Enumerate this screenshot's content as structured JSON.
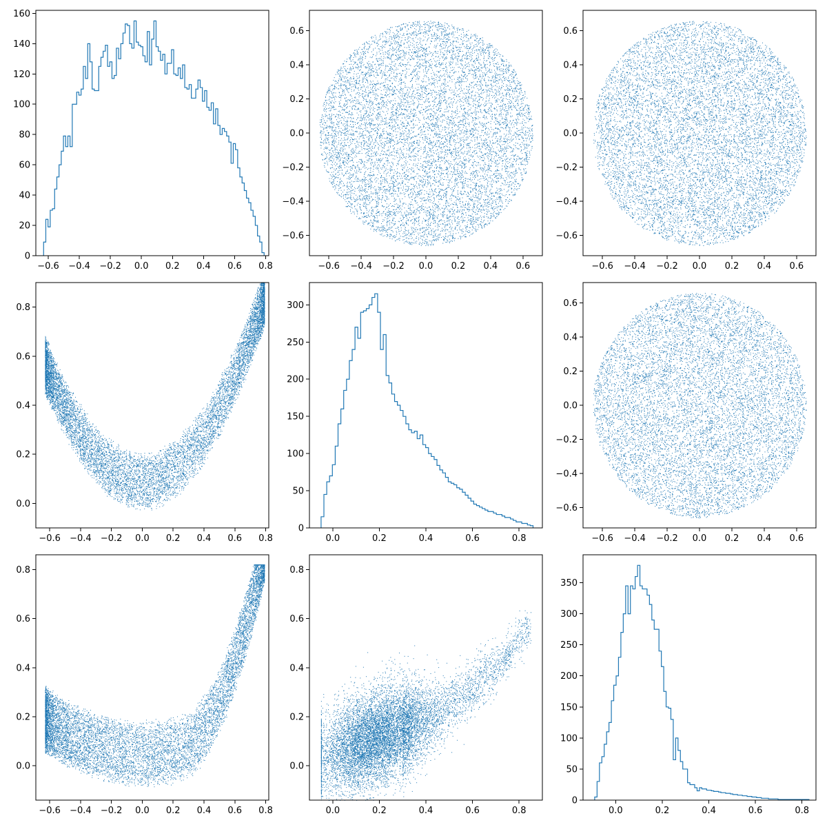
{
  "colors": {
    "series": "#1f77b4",
    "axes": "#000000",
    "background": "#ffffff"
  },
  "chart_data": [
    {
      "panel": "row1-col1",
      "type": "histogram",
      "xlim": [
        -0.68,
        0.82
      ],
      "ylim": [
        0,
        162
      ],
      "xticks": [
        -0.6,
        -0.4,
        -0.2,
        0.0,
        0.2,
        0.4,
        0.6,
        0.8
      ],
      "xtick_labels": [
        "−0.6",
        "−0.4",
        "−0.2",
        "0.0",
        "0.2",
        "0.4",
        "0.6",
        "0.8"
      ],
      "yticks": [
        0,
        20,
        40,
        60,
        80,
        100,
        120,
        140,
        160
      ],
      "ytick_labels": [
        "0",
        "20",
        "40",
        "60",
        "80",
        "100",
        "120",
        "140",
        "160"
      ],
      "bin_range": [
        -0.63,
        0.79
      ],
      "counts": [
        9,
        24,
        19,
        30,
        31,
        44,
        52,
        60,
        69,
        79,
        72,
        79,
        72,
        100,
        100,
        108,
        106,
        110,
        125,
        117,
        140,
        128,
        110,
        109,
        109,
        125,
        131,
        135,
        139,
        125,
        128,
        117,
        119,
        137,
        130,
        140,
        147,
        153,
        152,
        140,
        137,
        155,
        141,
        139,
        138,
        132,
        128,
        148,
        126,
        143,
        155,
        138,
        135,
        129,
        133,
        120,
        127,
        127,
        136,
        120,
        119,
        124,
        117,
        126,
        111,
        110,
        113,
        104,
        104,
        110,
        116,
        111,
        102,
        109,
        98,
        96,
        101,
        87,
        97,
        86,
        80,
        84,
        82,
        79,
        75,
        61,
        74,
        70,
        58,
        52,
        48,
        43,
        38,
        35,
        30,
        26,
        20,
        13,
        9,
        2
      ]
    },
    {
      "panel": "row1-col2",
      "type": "scatter",
      "shape": "disc",
      "center": [
        0.0,
        0.0
      ],
      "radius": 0.66,
      "n_points": 10000,
      "xlim": [
        -0.72,
        0.72
      ],
      "ylim": [
        -0.72,
        0.72
      ],
      "xticks": [
        -0.6,
        -0.4,
        -0.2,
        0.0,
        0.2,
        0.4,
        0.6
      ],
      "xtick_labels": [
        "−0.6",
        "−0.4",
        "−0.2",
        "0.0",
        "0.2",
        "0.4",
        "0.6"
      ],
      "yticks": [
        -0.6,
        -0.4,
        -0.2,
        0.0,
        0.2,
        0.4,
        0.6
      ],
      "ytick_labels": [
        "−0.6",
        "−0.4",
        "−0.2",
        "0.0",
        "0.2",
        "0.4",
        "0.6"
      ]
    },
    {
      "panel": "row1-col3",
      "type": "scatter",
      "shape": "disc",
      "center": [
        0.0,
        0.0
      ],
      "radius": 0.66,
      "n_points": 10000,
      "xlim": [
        -0.72,
        0.72
      ],
      "ylim": [
        -0.72,
        0.72
      ],
      "xticks": [
        -0.6,
        -0.4,
        -0.2,
        0.0,
        0.2,
        0.4,
        0.6
      ],
      "xtick_labels": [
        "−0.6",
        "−0.4",
        "−0.2",
        "0.0",
        "0.2",
        "0.4",
        "0.6"
      ],
      "yticks": [
        -0.6,
        -0.4,
        -0.2,
        0.0,
        0.2,
        0.4,
        0.6
      ],
      "ytick_labels": [
        "−0.6",
        "−0.4",
        "−0.2",
        "0.0",
        "0.2",
        "0.4",
        "0.6"
      ]
    },
    {
      "panel": "row2-col1",
      "type": "scatter",
      "shape": "parabolic-band",
      "x_range": [
        -0.63,
        0.79
      ],
      "curve": "y = 1.2*x^2 + 0.09 +/- 0.13",
      "n_points": 10000,
      "xlim": [
        -0.69,
        0.82
      ],
      "ylim": [
        -0.1,
        0.9
      ],
      "xticks": [
        -0.6,
        -0.4,
        -0.2,
        0.0,
        0.2,
        0.4,
        0.6,
        0.8
      ],
      "xtick_labels": [
        "−0.6",
        "−0.4",
        "−0.2",
        "0.0",
        "0.2",
        "0.4",
        "0.6",
        "0.8"
      ],
      "yticks": [
        0.0,
        0.2,
        0.4,
        0.6,
        0.8
      ],
      "ytick_labels": [
        "0.0",
        "0.2",
        "0.4",
        "0.6",
        "0.8"
      ]
    },
    {
      "panel": "row2-col2",
      "type": "histogram",
      "xlim": [
        -0.1,
        0.9
      ],
      "ylim": [
        0,
        330
      ],
      "xticks": [
        0.0,
        0.2,
        0.4,
        0.6,
        0.8
      ],
      "xtick_labels": [
        "0.0",
        "0.2",
        "0.4",
        "0.6",
        "0.8"
      ],
      "yticks": [
        0,
        50,
        100,
        150,
        200,
        250,
        300
      ],
      "ytick_labels": [
        "0",
        "50",
        "100",
        "150",
        "200",
        "250",
        "300"
      ],
      "bin_range": [
        -0.05,
        0.86
      ],
      "counts": [
        15,
        45,
        62,
        70,
        85,
        110,
        140,
        160,
        185,
        200,
        225,
        240,
        270,
        255,
        290,
        292,
        295,
        300,
        310,
        315,
        290,
        240,
        260,
        205,
        195,
        180,
        170,
        165,
        158,
        150,
        140,
        132,
        128,
        130,
        120,
        125,
        112,
        108,
        100,
        96,
        92,
        84,
        78,
        74,
        68,
        62,
        60,
        58,
        54,
        52,
        48,
        44,
        40,
        36,
        32,
        30,
        28,
        26,
        24,
        22,
        22,
        20,
        18,
        18,
        16,
        14,
        14,
        12,
        10,
        8,
        8,
        6,
        6,
        4,
        3
      ]
    },
    {
      "panel": "row2-col3",
      "type": "scatter",
      "shape": "disc",
      "center": [
        0.0,
        0.0
      ],
      "radius": 0.66,
      "n_points": 10000,
      "xlim": [
        -0.72,
        0.72
      ],
      "ylim": [
        -0.72,
        0.72
      ],
      "xticks": [
        -0.6,
        -0.4,
        -0.2,
        0.0,
        0.2,
        0.4,
        0.6
      ],
      "xtick_labels": [
        "−0.6",
        "−0.4",
        "−0.2",
        "0.0",
        "0.2",
        "0.4",
        "0.6"
      ],
      "yticks": [
        -0.6,
        -0.4,
        -0.2,
        0.0,
        0.2,
        0.4,
        0.6
      ],
      "ytick_labels": [
        "−0.6",
        "−0.4",
        "−0.2",
        "0.0",
        "0.2",
        "0.4",
        "0.6"
      ]
    },
    {
      "panel": "row3-col1",
      "type": "scatter",
      "shape": "u-band",
      "x_range": [
        -0.63,
        0.79
      ],
      "n_points": 10000,
      "xlim": [
        -0.69,
        0.82
      ],
      "ylim": [
        -0.14,
        0.86
      ],
      "xticks": [
        -0.6,
        -0.4,
        -0.2,
        0.0,
        0.2,
        0.4,
        0.6,
        0.8
      ],
      "xtick_labels": [
        "−0.6",
        "−0.4",
        "−0.2",
        "0.0",
        "0.2",
        "0.4",
        "0.6",
        "0.8"
      ],
      "yticks": [
        0.0,
        0.2,
        0.4,
        0.6,
        0.8
      ],
      "ytick_labels": [
        "0.0",
        "0.2",
        "0.4",
        "0.6",
        "0.8"
      ]
    },
    {
      "panel": "row3-col2",
      "type": "scatter",
      "shape": "comet",
      "x_range": [
        -0.05,
        0.86
      ],
      "n_points": 10000,
      "xlim": [
        -0.1,
        0.9
      ],
      "ylim": [
        -0.14,
        0.86
      ],
      "xticks": [
        0.0,
        0.2,
        0.4,
        0.6,
        0.8
      ],
      "xtick_labels": [
        "0.0",
        "0.2",
        "0.4",
        "0.6",
        "0.8"
      ],
      "yticks": [
        0.0,
        0.2,
        0.4,
        0.6,
        0.8
      ],
      "ytick_labels": [
        "0.0",
        "0.2",
        "0.4",
        "0.6",
        "0.8"
      ]
    },
    {
      "panel": "row3-col3",
      "type": "histogram",
      "xlim": [
        -0.14,
        0.86
      ],
      "ylim": [
        0,
        395
      ],
      "xticks": [
        0.0,
        0.2,
        0.4,
        0.6,
        0.8
      ],
      "xtick_labels": [
        "0.0",
        "0.2",
        "0.4",
        "0.6",
        "0.8"
      ],
      "yticks": [
        0,
        50,
        100,
        150,
        200,
        250,
        300,
        350
      ],
      "ytick_labels": [
        "0",
        "50",
        "100",
        "150",
        "200",
        "250",
        "300",
        "350"
      ],
      "bin_range": [
        -0.09,
        0.83
      ],
      "counts": [
        5,
        30,
        60,
        70,
        90,
        110,
        125,
        160,
        185,
        200,
        230,
        270,
        300,
        345,
        300,
        345,
        340,
        360,
        378,
        345,
        340,
        340,
        330,
        315,
        290,
        275,
        275,
        240,
        215,
        175,
        150,
        148,
        130,
        65,
        100,
        80,
        62,
        50,
        50,
        28,
        25,
        25,
        20,
        15,
        20,
        18,
        18,
        16,
        16,
        15,
        14,
        14,
        13,
        12,
        12,
        11,
        11,
        10,
        9,
        9,
        8,
        8,
        7,
        7,
        6,
        6,
        5,
        5,
        4,
        4,
        3,
        3,
        3,
        2,
        2,
        2,
        2,
        1,
        1,
        1,
        1,
        1,
        1,
        1,
        1,
        1,
        1,
        1,
        1,
        1
      ]
    }
  ]
}
